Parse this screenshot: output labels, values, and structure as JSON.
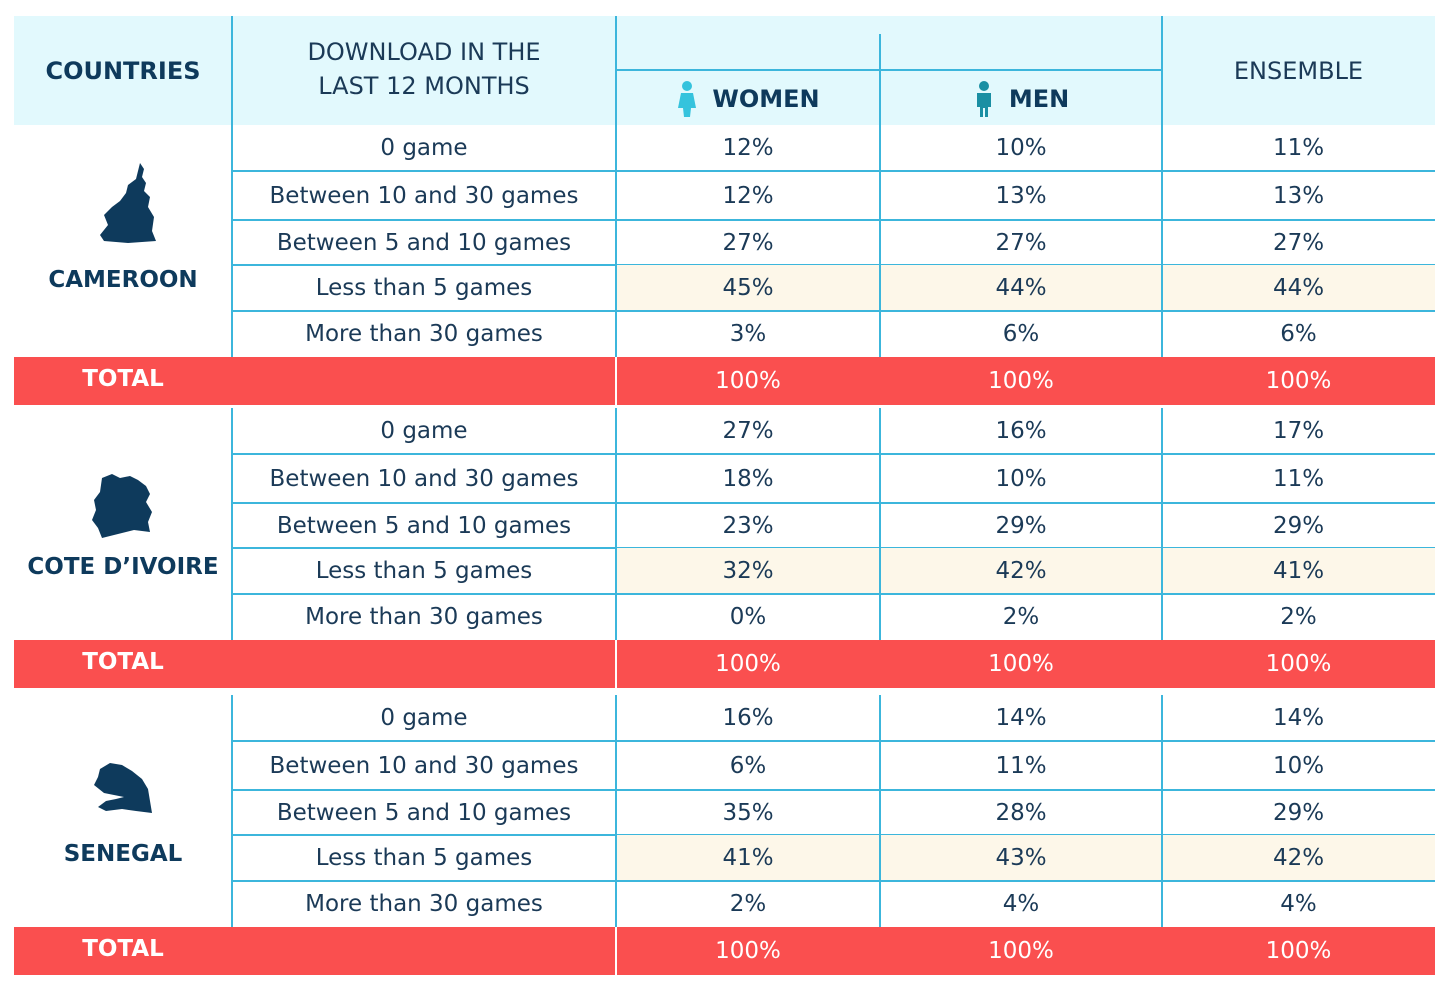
{
  "header": {
    "countries": "COUNTRIES",
    "download_line1": "DOWNLOAD IN THE",
    "download_line2": "LAST 12 MONTHS",
    "women": "WOMEN",
    "men": "MEN",
    "ensemble": "ENSEMBLE"
  },
  "colors": {
    "header_bg": "#e2f9fd",
    "grid_line": "#3cb6dc",
    "total_bar": "#fa4f4f",
    "highlight_row": "#fdf7e9",
    "text_dark": "#0e3a5c",
    "icon_teal": "#35c3dd"
  },
  "icons": {
    "women": "woman-icon",
    "men": "man-icon",
    "cameroon": "cameroon-map-icon",
    "cote_divoire": "cote-divoire-map-icon",
    "senegal": "senegal-map-icon"
  },
  "countries": [
    {
      "name": "CAMEROON",
      "rows": [
        {
          "label": "0 game",
          "women": "12%",
          "men": "10%",
          "ensemble": "11%"
        },
        {
          "label": "Between 10 and 30 games",
          "women": "12%",
          "men": "13%",
          "ensemble": "13%"
        },
        {
          "label": "Between 5 and 10 games",
          "women": "27%",
          "men": "27%",
          "ensemble": "27%"
        },
        {
          "label": "Less than 5 games",
          "women": "45%",
          "men": "44%",
          "ensemble": "44%"
        },
        {
          "label": "More than 30 games",
          "women": "3%",
          "men": "6%",
          "ensemble": "6%"
        }
      ],
      "total": {
        "label": "TOTAL",
        "women": "100%",
        "men": "100%",
        "ensemble": "100%"
      }
    },
    {
      "name": "COTE D’IVOIRE",
      "rows": [
        {
          "label": "0 game",
          "women": "27%",
          "men": "16%",
          "ensemble": "17%"
        },
        {
          "label": "Between 10 and 30 games",
          "women": "18%",
          "men": "10%",
          "ensemble": "11%"
        },
        {
          "label": "Between 5 and 10 games",
          "women": "23%",
          "men": "29%",
          "ensemble": "29%"
        },
        {
          "label": "Less than 5 games",
          "women": "32%",
          "men": "42%",
          "ensemble": "41%"
        },
        {
          "label": "More than 30 games",
          "women": "0%",
          "men": "2%",
          "ensemble": "2%"
        }
      ],
      "total": {
        "label": "TOTAL",
        "women": "100%",
        "men": "100%",
        "ensemble": "100%"
      }
    },
    {
      "name": "SENEGAL",
      "rows": [
        {
          "label": "0 game",
          "women": "16%",
          "men": "14%",
          "ensemble": "14%"
        },
        {
          "label": "Between 10 and 30 games",
          "women": "6%",
          "men": "11%",
          "ensemble": "10%"
        },
        {
          "label": "Between 5 and 10 games",
          "women": "35%",
          "men": "28%",
          "ensemble": "29%"
        },
        {
          "label": "Less than 5 games",
          "women": "41%",
          "men": "43%",
          "ensemble": "42%"
        },
        {
          "label": "More than 30 games",
          "women": "2%",
          "men": "4%",
          "ensemble": "4%"
        }
      ],
      "total": {
        "label": "TOTAL",
        "women": "100%",
        "men": "100%",
        "ensemble": "100%"
      }
    }
  ]
}
